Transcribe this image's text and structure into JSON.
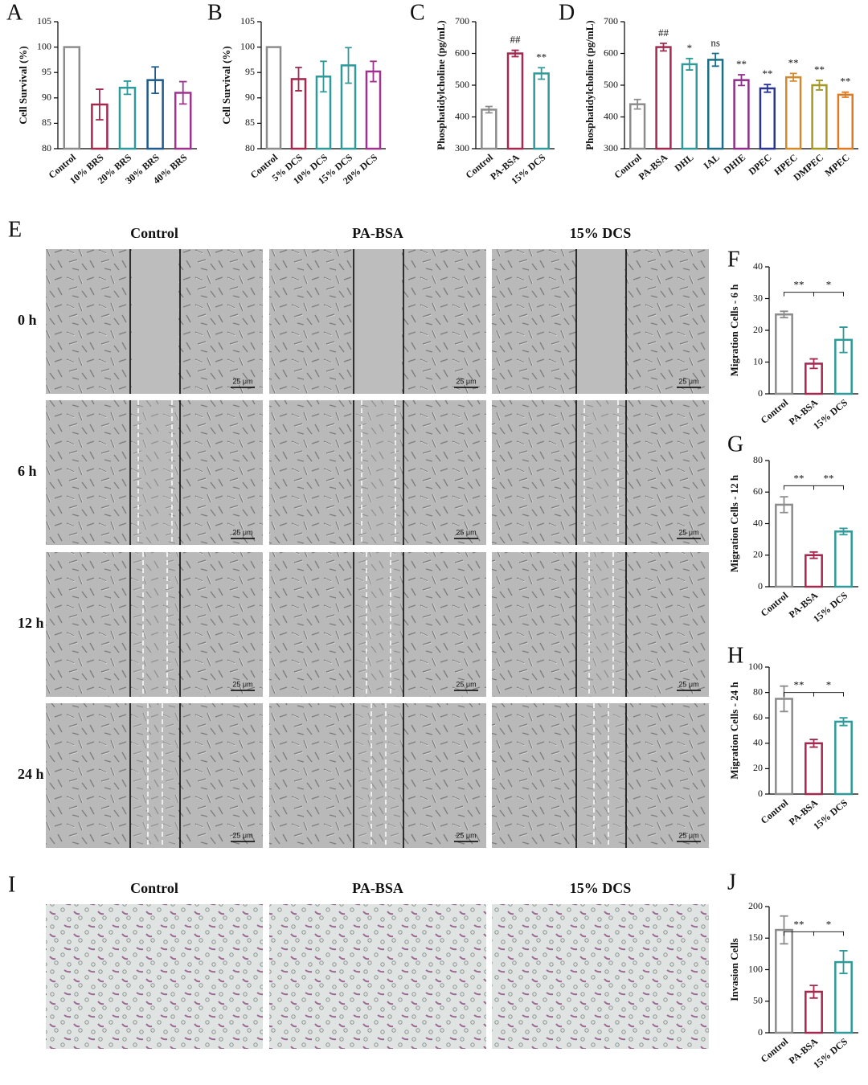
{
  "chart_data": [
    {
      "type": "bar",
      "panel": "A",
      "y_label": "Cell Survival (%)",
      "categories": [
        "Control",
        "10% BRS",
        "20% BRS",
        "30% BRS",
        "40% BRS"
      ],
      "values": [
        100,
        88.7,
        92,
        93.5,
        91
      ],
      "errors": [
        0,
        3,
        1.3,
        2.6,
        2.2
      ],
      "colors": [
        "#8c8c8c",
        "#a3294f",
        "#2e9a9a",
        "#1f5a8c",
        "#a0328f"
      ],
      "ylim": [
        80,
        105
      ],
      "yticks": [
        80,
        85,
        90,
        95,
        100,
        105
      ]
    },
    {
      "type": "bar",
      "panel": "B",
      "y_label": "Cell Survival (%)",
      "categories": [
        "Control",
        "5% DCS",
        "10% DCS",
        "15% DCS",
        "20% DCS"
      ],
      "values": [
        100,
        93.7,
        94.2,
        96.4,
        95.2
      ],
      "errors": [
        0,
        2.3,
        3,
        3.5,
        2
      ],
      "colors": [
        "#8c8c8c",
        "#a3294f",
        "#2e9a9a",
        "#2e9a9a",
        "#a0328f"
      ],
      "ylim": [
        80,
        105
      ],
      "yticks": [
        80,
        85,
        90,
        95,
        100,
        105
      ]
    },
    {
      "type": "bar",
      "panel": "C",
      "y_label": "Phosphatidylcholine (pg/mL)",
      "categories": [
        "Control",
        "PA-BSA",
        "15% DCS"
      ],
      "values": [
        423,
        600,
        537
      ],
      "errors": [
        10,
        10,
        18
      ],
      "annotations": [
        null,
        "##",
        "**"
      ],
      "colors": [
        "#8c8c8c",
        "#a3294f",
        "#2e9a9a"
      ],
      "ylim": [
        300,
        700
      ],
      "yticks": [
        300,
        400,
        500,
        600,
        700
      ]
    },
    {
      "type": "bar",
      "panel": "D",
      "y_label": "Phosphatidylcholine (pg/mL)",
      "categories": [
        "Control",
        "PA-BSA",
        "DHL",
        "IAL",
        "DHIE",
        "DPEC",
        "HPEC",
        "DMPEC",
        "MPEC"
      ],
      "values": [
        440,
        620,
        566,
        580,
        516,
        490,
        525,
        500,
        470
      ],
      "errors": [
        15,
        12,
        18,
        20,
        17,
        12,
        12,
        15,
        8
      ],
      "annotations": [
        null,
        "##",
        "*",
        "ns",
        "**",
        "**",
        "**",
        "**",
        "**"
      ],
      "colors": [
        "#8c8c8c",
        "#a3294f",
        "#2e9a9a",
        "#1a6f86",
        "#8e2e8a",
        "#2a3590",
        "#d08a2a",
        "#a59a1f",
        "#e07a20"
      ],
      "ylim": [
        300,
        700
      ],
      "yticks": [
        300,
        400,
        500,
        600,
        700
      ]
    },
    {
      "type": "bar",
      "panel": "F",
      "y_label": "Migration Cells - 6 h",
      "categories": [
        "Control",
        "PA-BSA",
        "15% DCS"
      ],
      "values": [
        25,
        9.5,
        17
      ],
      "errors": [
        1,
        1.5,
        4
      ],
      "significance": [
        "**",
        "*"
      ],
      "colors": [
        "#8c8c8c",
        "#a3294f",
        "#2e9a9a"
      ],
      "ylim": [
        0,
        40
      ],
      "yticks": [
        0,
        10,
        20,
        30,
        40
      ]
    },
    {
      "type": "bar",
      "panel": "G",
      "y_label": "Migration Cells - 12 h",
      "categories": [
        "Control",
        "PA-BSA",
        "15% DCS"
      ],
      "values": [
        52,
        20,
        35
      ],
      "errors": [
        5,
        2,
        2
      ],
      "significance": [
        "**",
        "**"
      ],
      "colors": [
        "#8c8c8c",
        "#a3294f",
        "#2e9a9a"
      ],
      "ylim": [
        0,
        80
      ],
      "yticks": [
        0,
        20,
        40,
        60,
        80
      ]
    },
    {
      "type": "bar",
      "panel": "H",
      "y_label": "Migration Cells - 24 h",
      "categories": [
        "Control",
        "PA-BSA",
        "15% DCS"
      ],
      "values": [
        75,
        40,
        57
      ],
      "errors": [
        10,
        3,
        3
      ],
      "significance": [
        "**",
        "*"
      ],
      "colors": [
        "#8c8c8c",
        "#a3294f",
        "#2e9a9a"
      ],
      "ylim": [
        0,
        100
      ],
      "yticks": [
        0,
        20,
        40,
        60,
        80,
        100
      ]
    },
    {
      "type": "bar",
      "panel": "J",
      "y_label": "Invasion Cells",
      "categories": [
        "Control",
        "PA-BSA",
        "15% DCS"
      ],
      "values": [
        163,
        65,
        112
      ],
      "errors": [
        22,
        10,
        18
      ],
      "significance": [
        "**",
        "*"
      ],
      "colors": [
        "#8c8c8c",
        "#a3294f",
        "#2e9a9a"
      ],
      "ylim": [
        0,
        200
      ],
      "yticks": [
        0,
        50,
        100,
        150,
        200
      ]
    }
  ],
  "wound_healing": {
    "panel": "E",
    "columns": [
      "Control",
      "PA-BSA",
      "15% DCS"
    ],
    "rows": [
      "0 h",
      "6 h",
      "12 h",
      "24 h"
    ],
    "scale_bar": "25 μm"
  },
  "invasion": {
    "panel": "I",
    "columns": [
      "Control",
      "PA-BSA",
      "15% DCS"
    ]
  }
}
